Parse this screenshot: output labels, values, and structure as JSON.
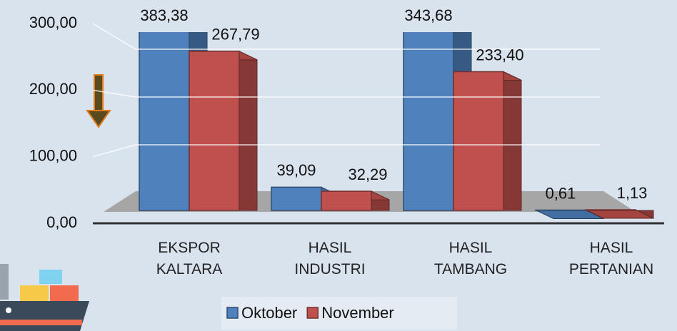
{
  "chart_data": {
    "type": "bar3d",
    "categories": [
      "EKSPOR\nKALTARA",
      "HASIL\nINDUSTRI",
      "HASIL\nTAMBANG",
      "HASIL\nPERTANIAN"
    ],
    "series": [
      {
        "name": "Oktober",
        "color": "#4f81bd",
        "values": [
          383.38,
          39.09,
          343.68,
          0.61
        ],
        "value_labels": [
          "383,38",
          "39,09",
          "343,68",
          "0,61"
        ]
      },
      {
        "name": "November",
        "color": "#c0504d",
        "values": [
          267.79,
          32.29,
          233.4,
          1.13
        ],
        "value_labels": [
          "267,79",
          "32,29",
          "233,40",
          "1,13"
        ]
      }
    ],
    "ylim": [
      0,
      300
    ],
    "yticks": [
      {
        "value": 0,
        "label": "0,00"
      },
      {
        "value": 100,
        "label": "100,00"
      },
      {
        "value": 200,
        "label": "200,00"
      },
      {
        "value": 300,
        "label": "300,00"
      }
    ],
    "grid": true,
    "legend": "bottom"
  }
}
